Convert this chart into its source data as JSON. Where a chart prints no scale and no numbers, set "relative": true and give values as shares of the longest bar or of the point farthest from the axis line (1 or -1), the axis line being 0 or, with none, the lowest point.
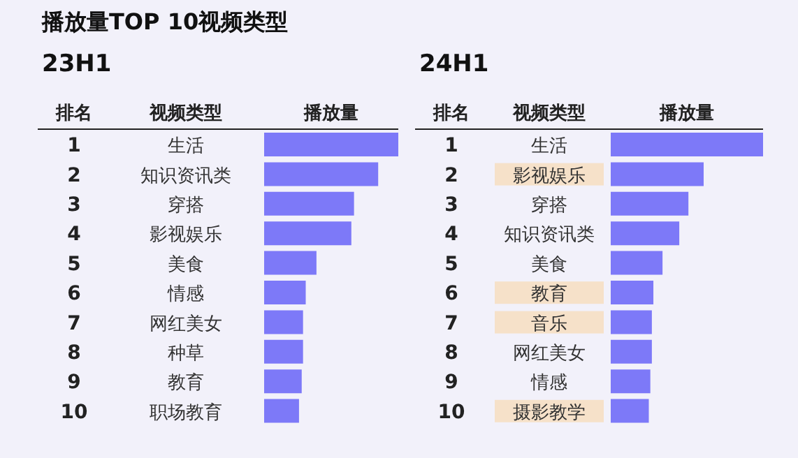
{
  "chart_data": [
    {
      "type": "bar",
      "orientation": "horizontal",
      "relative": true,
      "title": "播放量TOP 10视频类型",
      "subtitle": "23H1",
      "annotations": [
        "排名",
        "视频类型",
        "播放量",
        "1",
        "2",
        "3",
        "4",
        "5",
        "6",
        "7",
        "8",
        "9",
        "10"
      ],
      "categories": [
        "生活",
        "知识资讯类",
        "穿搭",
        "影视娱乐",
        "美食",
        "情感",
        "网红美女",
        "种草",
        "教育",
        "职场教育"
      ],
      "values": [
        1,
        0.85,
        0.67,
        0.65,
        0.39,
        0.31,
        0.29,
        0.29,
        0.28,
        0.26
      ],
      "color": "#7d79f8"
    },
    {
      "type": "bar",
      "orientation": "horizontal",
      "relative": true,
      "subtitle": "24H1",
      "annotations": [
        "排名",
        "视频类型",
        "播放量",
        "1",
        "2",
        "3",
        "4",
        "5",
        "6",
        "7",
        "8",
        "9",
        "10"
      ],
      "categories": [
        "生活",
        "影视娱乐",
        "穿搭",
        "知识资讯类",
        "美食",
        "教育",
        "音乐",
        "网红美女",
        "情感",
        "摄影教学"
      ],
      "values": [
        1,
        0.61,
        0.51,
        0.45,
        0.34,
        0.28,
        0.27,
        0.27,
        0.26,
        0.25
      ],
      "color": "#7d79f8"
    }
  ]
}
